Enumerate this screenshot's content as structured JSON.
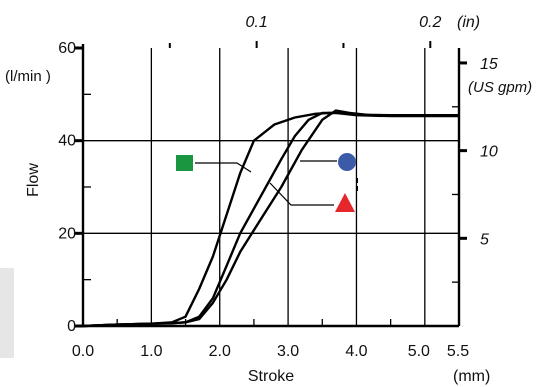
{
  "chart_data": {
    "type": "line",
    "xlabel": "Stroke",
    "x_unit": "(mm)",
    "ylabel": "Flow",
    "y_unit": "(l/min )",
    "xlim": [
      0,
      5.5
    ],
    "ylim": [
      0,
      60
    ],
    "x_ticks": [
      0,
      1,
      2,
      3,
      4,
      5,
      5.5
    ],
    "x_tick_labels": [
      "0.0",
      "1.0",
      "2.0",
      "3.0",
      "4.0",
      "5.0",
      "5.5"
    ],
    "y_ticks": [
      0,
      20,
      40,
      60
    ],
    "y_tick_labels": [
      "0",
      "20",
      "40",
      "60"
    ],
    "top_axis": {
      "unit": "(in)",
      "ticks": [
        0.1,
        0.2
      ],
      "tick_labels": [
        "0.1",
        "0.2"
      ],
      "mm_per_unit": 25.4
    },
    "right_axis": {
      "unit": "(US gpm)",
      "ticks": [
        5,
        10,
        15
      ],
      "tick_labels": [
        "5",
        "10",
        "15"
      ],
      "lpm_per_unit": 3.785
    },
    "grid": true,
    "series": [
      {
        "marker": "square",
        "color": "#1a9641",
        "x": [
          0,
          0.5,
          1.0,
          1.3,
          1.5,
          1.7,
          1.9,
          2.1,
          2.3,
          2.5,
          2.8,
          3.1,
          3.4,
          3.6,
          3.8,
          4.0,
          4.5,
          5.5
        ],
        "y": [
          0,
          0.3,
          0.5,
          0.8,
          2,
          8,
          15,
          24,
          33,
          40,
          43.5,
          45,
          45.8,
          46,
          46,
          45.6,
          45.5,
          45.5
        ]
      },
      {
        "marker": "circle",
        "color": "#3b5ba9",
        "x": [
          0,
          0.5,
          1.0,
          1.3,
          1.5,
          1.7,
          1.9,
          2.1,
          2.3,
          2.6,
          2.9,
          3.1,
          3.3,
          3.5,
          3.7,
          4.0,
          4.5,
          5.5
        ],
        "y": [
          0,
          0.3,
          0.5,
          0.6,
          0.8,
          2,
          6,
          13,
          20,
          28,
          36,
          41,
          44.5,
          46,
          46,
          45.5,
          45.3,
          45.3
        ]
      },
      {
        "marker": "triangle",
        "color": "#e5262b",
        "x": [
          0,
          0.5,
          1.0,
          1.3,
          1.5,
          1.7,
          1.9,
          2.1,
          2.3,
          2.6,
          2.9,
          3.2,
          3.5,
          3.7,
          3.9,
          4.2,
          5.5
        ],
        "y": [
          0,
          0.3,
          0.5,
          0.6,
          0.8,
          1.5,
          5,
          10,
          16,
          23,
          30,
          38,
          44.5,
          46.5,
          46,
          45.5,
          45.5
        ]
      }
    ]
  }
}
